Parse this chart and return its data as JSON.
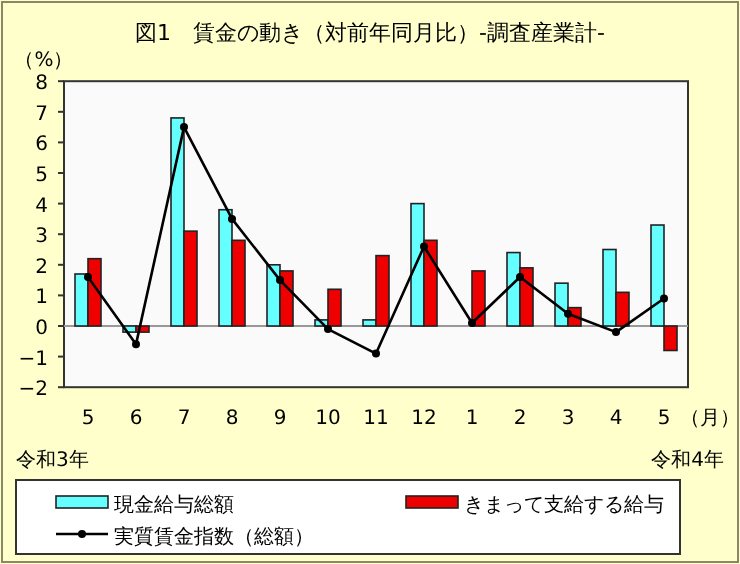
{
  "chart_data": {
    "type": "bar",
    "title": "図1　賃金の動き（対前年同月比）-調査産業計-",
    "ylabel": "（%）",
    "xlabel": "（月）",
    "categories": [
      "5",
      "6",
      "7",
      "8",
      "9",
      "10",
      "11",
      "12",
      "1",
      "2",
      "3",
      "4",
      "5"
    ],
    "series": [
      {
        "name": "現金給与総額",
        "color": "#66ffff",
        "values": [
          1.7,
          -0.2,
          6.8,
          3.8,
          2.0,
          0.2,
          0.2,
          4.0,
          0.0,
          2.4,
          1.4,
          2.5,
          3.3
        ]
      },
      {
        "name": "きまって支給する給与",
        "color": "#ee0000",
        "values": [
          2.2,
          -0.2,
          3.1,
          2.8,
          1.8,
          1.2,
          2.3,
          2.8,
          1.8,
          1.9,
          0.6,
          1.1,
          -0.8
        ]
      },
      {
        "name": "実質賃金指数（総額）",
        "type": "line",
        "color": "#000000",
        "marker": "circle",
        "values": [
          1.6,
          -0.6,
          6.5,
          3.5,
          1.5,
          -0.1,
          -0.9,
          2.6,
          0.1,
          1.6,
          0.4,
          -0.2,
          0.9
        ]
      }
    ],
    "ylim": [
      -2,
      8
    ],
    "yticks": [
      -2,
      -1,
      0,
      1,
      2,
      3,
      4,
      5,
      6,
      7,
      8
    ],
    "annotations": [
      "令和3年",
      "令和4年"
    ],
    "ref_lines": [
      {
        "axis": "y",
        "value": 0,
        "color": "#999999"
      }
    ],
    "legend": "bottom"
  }
}
